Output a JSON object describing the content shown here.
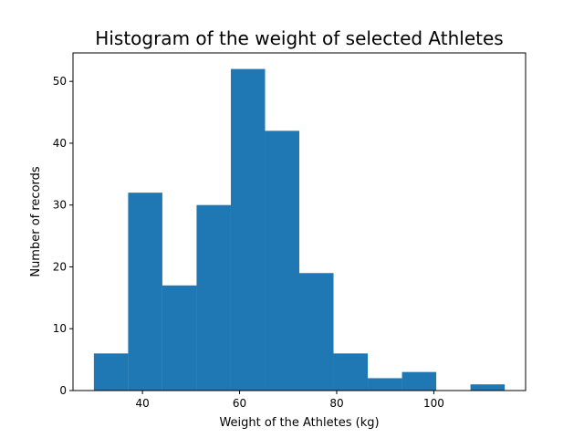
{
  "chart_data": {
    "type": "bar",
    "title": "Histogram of the weight of selected Athletes",
    "xlabel": "Weight of the Athletes (kg)",
    "ylabel": "Number of records",
    "bin_edges": [
      30,
      37.05,
      44.1,
      51.15,
      58.2,
      65.25,
      72.3,
      79.35,
      86.4,
      93.45,
      100.5,
      107.55,
      114.6
    ],
    "values": [
      6,
      32,
      17,
      30,
      52,
      42,
      19,
      6,
      2,
      3,
      0,
      1
    ],
    "xlim": [
      25.7,
      118.9
    ],
    "ylim": [
      0,
      54.6
    ],
    "xticks": [
      40,
      60,
      80,
      100
    ],
    "yticks": [
      0,
      10,
      20,
      30,
      40,
      50
    ],
    "color": "#1f77b4",
    "grid": false
  }
}
